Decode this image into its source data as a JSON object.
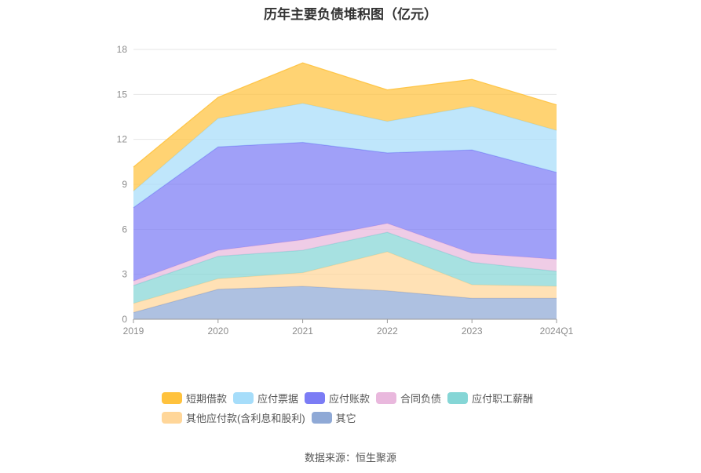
{
  "chart_data": {
    "type": "area",
    "stacked": true,
    "title": "历年主要负债堆积图（亿元）",
    "categories": [
      "2019",
      "2020",
      "2021",
      "2022",
      "2023",
      "2024Q1"
    ],
    "ylim": [
      0,
      18
    ],
    "yticks": [
      0,
      3,
      6,
      9,
      12,
      15,
      18
    ],
    "grid": true,
    "legend_position": "bottom",
    "series": [
      {
        "name": "其它",
        "color": "#8fa9d6",
        "values": [
          0.45,
          2.0,
          2.2,
          1.9,
          1.4,
          1.4
        ]
      },
      {
        "name": "其他应付款(含利息和股利)",
        "color": "#ffd699",
        "values": [
          0.6,
          0.7,
          0.9,
          2.6,
          0.9,
          0.8
        ]
      },
      {
        "name": "应付职工薪酬",
        "color": "#85d6d6",
        "values": [
          1.2,
          1.5,
          1.5,
          1.3,
          1.5,
          1.0
        ]
      },
      {
        "name": "合同负债",
        "color": "#e9b8dd",
        "values": [
          0.3,
          0.4,
          0.7,
          0.6,
          0.6,
          0.8
        ]
      },
      {
        "name": "应付账款",
        "color": "#7b7cf5",
        "values": [
          4.9,
          6.9,
          6.5,
          4.7,
          6.9,
          5.8
        ]
      },
      {
        "name": "应付票据",
        "color": "#a6ddfa",
        "values": [
          1.1,
          1.9,
          2.6,
          2.1,
          2.9,
          2.8
        ]
      },
      {
        "name": "短期借款",
        "color": "#ffc23d",
        "values": [
          1.6,
          1.4,
          2.7,
          2.1,
          1.8,
          1.7
        ]
      }
    ],
    "legend_order": [
      "短期借款",
      "应付票据",
      "应付账款",
      "合同负债",
      "应付职工薪酬",
      "其他应付款(含利息和股利)",
      "其它"
    ]
  },
  "source_text": "数据来源：恒生聚源"
}
